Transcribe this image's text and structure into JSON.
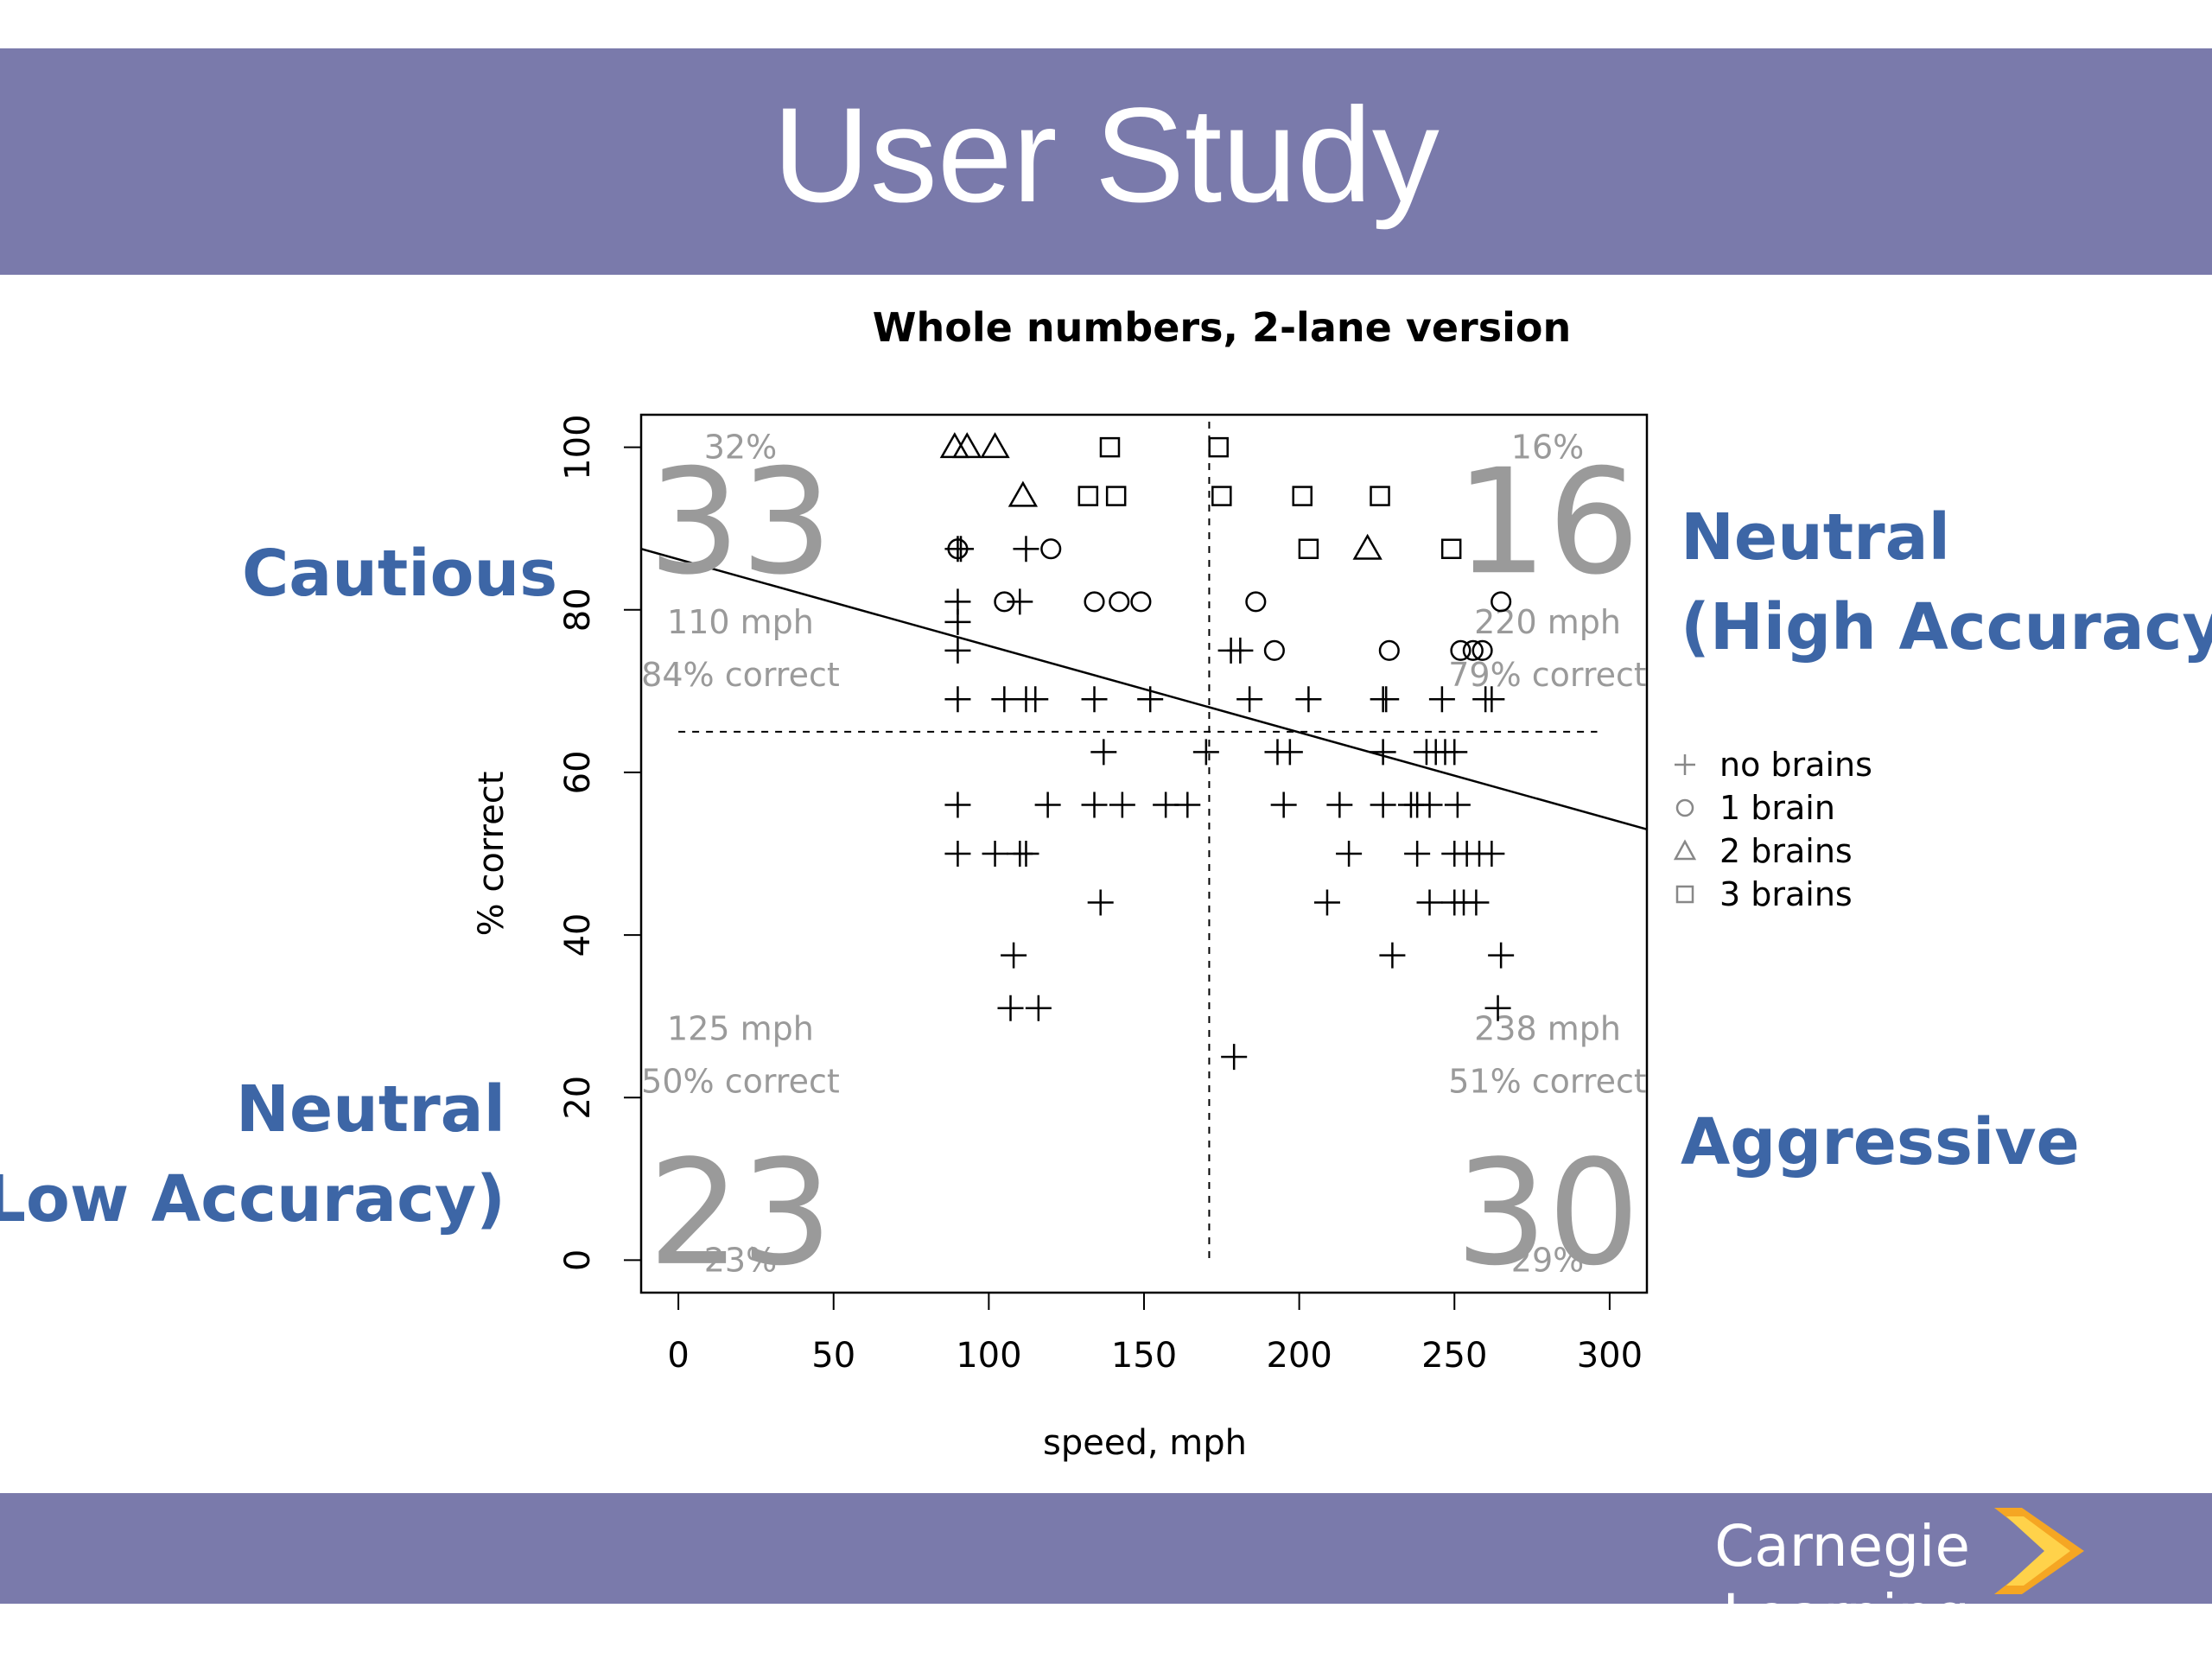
{
  "slide": {
    "title": "User Study",
    "footer_brand": "Carnegie Learning"
  },
  "colors": {
    "band": "#7a7aab",
    "label_blue": "#3d66a6",
    "quad_gray": "#9a9a9a",
    "logo_orange": "#f5a623",
    "logo_yellow": "#ffd24a"
  },
  "quadrant_labels": {
    "top_left": "Cautious",
    "top_right_line1": "Neutral",
    "top_right_line2": "(High Accuracy)",
    "bottom_left_line1": "Neutral",
    "bottom_left_line2": "(Low Accuracy)",
    "bottom_right": "Aggressive"
  },
  "chart_data": {
    "type": "scatter",
    "title": "Whole numbers, 2-lane version",
    "xlabel": "speed, mph",
    "ylabel": "% correct",
    "xlim": [
      -12,
      312
    ],
    "ylim": [
      -4,
      104
    ],
    "xticks": [
      0,
      50,
      100,
      150,
      200,
      250,
      300
    ],
    "yticks": [
      0,
      20,
      40,
      60,
      80,
      100
    ],
    "x_divider": 171,
    "y_divider": 65,
    "regression_line": {
      "x": [
        -12,
        312
      ],
      "y": [
        87.5,
        53
      ]
    },
    "legend_position": "right",
    "series": [
      {
        "name": "no brains",
        "symbol": "plus",
        "points": [
          [
            90,
            87.5
          ],
          [
            91,
            87.5
          ],
          [
            112,
            87.5
          ],
          [
            90,
            81
          ],
          [
            110,
            81
          ],
          [
            90,
            78.5
          ],
          [
            90,
            75
          ],
          [
            178,
            75
          ],
          [
            181,
            75
          ],
          [
            90,
            69
          ],
          [
            105,
            69
          ],
          [
            112,
            69
          ],
          [
            115,
            69
          ],
          [
            134,
            69
          ],
          [
            152,
            69
          ],
          [
            184,
            69
          ],
          [
            203,
            69
          ],
          [
            227,
            69
          ],
          [
            228,
            69
          ],
          [
            246,
            69
          ],
          [
            260,
            69
          ],
          [
            262,
            69
          ],
          [
            137,
            62.5
          ],
          [
            170,
            62.5
          ],
          [
            193,
            62.5
          ],
          [
            197,
            62.5
          ],
          [
            227,
            62.5
          ],
          [
            241,
            62.5
          ],
          [
            244,
            62.5
          ],
          [
            247,
            62.5
          ],
          [
            250,
            62.5
          ],
          [
            90,
            56
          ],
          [
            119,
            56
          ],
          [
            134,
            56
          ],
          [
            143,
            56
          ],
          [
            157,
            56
          ],
          [
            164,
            56
          ],
          [
            195,
            56
          ],
          [
            213,
            56
          ],
          [
            227,
            56
          ],
          [
            236,
            56
          ],
          [
            238,
            56
          ],
          [
            242,
            56
          ],
          [
            251,
            56
          ],
          [
            90,
            50
          ],
          [
            102,
            50
          ],
          [
            110,
            50
          ],
          [
            112,
            50
          ],
          [
            216,
            50
          ],
          [
            238,
            50
          ],
          [
            250,
            50
          ],
          [
            254,
            50
          ],
          [
            258,
            50
          ],
          [
            262,
            50
          ],
          [
            136,
            44
          ],
          [
            209,
            44
          ],
          [
            242,
            44
          ],
          [
            250,
            44
          ],
          [
            253,
            44
          ],
          [
            257,
            44
          ],
          [
            108,
            37.5
          ],
          [
            230,
            37.5
          ],
          [
            265,
            37.5
          ],
          [
            107,
            31
          ],
          [
            116,
            31
          ],
          [
            264,
            31
          ],
          [
            179,
            25
          ]
        ]
      },
      {
        "name": "1 brain",
        "symbol": "circle",
        "points": [
          [
            90,
            87.5
          ],
          [
            120,
            87.5
          ],
          [
            105,
            81
          ],
          [
            134,
            81
          ],
          [
            142,
            81
          ],
          [
            149,
            81
          ],
          [
            186,
            81
          ],
          [
            265,
            81
          ],
          [
            192,
            75
          ],
          [
            229,
            75
          ],
          [
            252,
            75
          ],
          [
            256,
            75
          ],
          [
            259,
            75
          ]
        ]
      },
      {
        "name": "2 brains",
        "symbol": "triangle",
        "points": [
          [
            89,
            100
          ],
          [
            93,
            100
          ],
          [
            102,
            100
          ],
          [
            111,
            94
          ],
          [
            222,
            87.5
          ]
        ]
      },
      {
        "name": "3 brains",
        "symbol": "square",
        "points": [
          [
            139,
            100
          ],
          [
            174,
            100
          ],
          [
            132,
            94
          ],
          [
            141,
            94
          ],
          [
            175,
            94
          ],
          [
            201,
            94
          ],
          [
            226,
            94
          ],
          [
            203,
            87.5
          ],
          [
            249,
            87.5
          ]
        ]
      }
    ],
    "quadrants": [
      {
        "pos": "top_left",
        "count": "33",
        "share": "32%",
        "speed": "110 mph",
        "accuracy": "84% correct"
      },
      {
        "pos": "top_right",
        "count": "16",
        "share": "16%",
        "speed": "220 mph",
        "accuracy": "79% correct"
      },
      {
        "pos": "bottom_left",
        "count": "23",
        "share": "23%",
        "speed": "125 mph",
        "accuracy": "50% correct"
      },
      {
        "pos": "bottom_right",
        "count": "30",
        "share": "29%",
        "speed": "238 mph",
        "accuracy": "51% correct"
      }
    ]
  }
}
